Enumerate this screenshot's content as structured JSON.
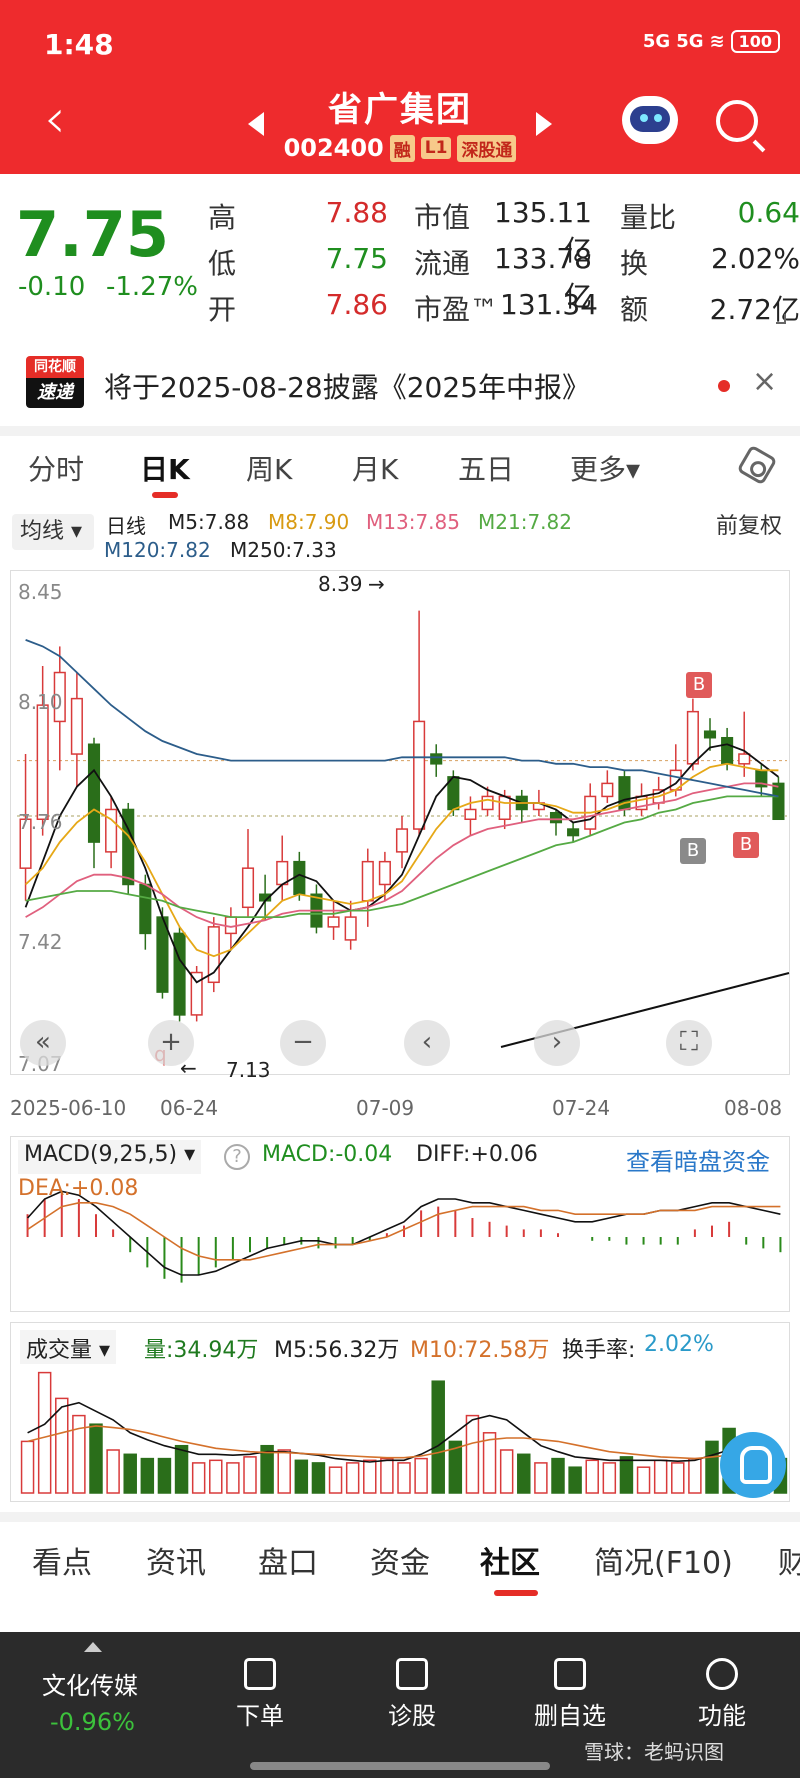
{
  "status": {
    "time": "1:48",
    "signal1": "5G",
    "signal2": "5G",
    "battery": "100"
  },
  "header": {
    "title": "省广集团",
    "code": "002400",
    "tags": [
      "融",
      "L1",
      "深股通"
    ]
  },
  "quote": {
    "price": "7.75",
    "change": "-0.10",
    "change_pct": "-1.27%",
    "high_label": "高",
    "high": "7.88",
    "low_label": "低",
    "low": "7.75",
    "open_label": "开",
    "open": "7.86",
    "mcap_label": "市值",
    "mcap": "135.11亿",
    "float_label": "流通",
    "float": "133.78亿",
    "pe_label": "市盈™",
    "pe": "131.34",
    "vr_label": "量比",
    "vr": "0.64",
    "turn_label": "换",
    "turn": "2.02%",
    "amt_label": "额",
    "amt": "2.72亿"
  },
  "notice": {
    "logo_top": "同花顺",
    "logo_bottom": "速递",
    "text": "将于2025-08-28披露《2025年中报》"
  },
  "ktabs": [
    "分时",
    "日K",
    "周K",
    "月K",
    "五日",
    "更多▾"
  ],
  "ma": {
    "select": "均线 ▾",
    "type": "日线",
    "m5": "M5:7.88",
    "m8": "M8:7.90",
    "m13": "M13:7.85",
    "m21": "M21:7.82",
    "m120": "M120:7.82",
    "m250": "M250:7.33",
    "adjust": "前复权"
  },
  "chart_axis": {
    "price_labels": [
      "8.45",
      "8.10",
      "7.76",
      "7.42",
      "7.07"
    ],
    "dates": [
      "2025-06-10",
      "06-24",
      "07-09",
      "07-24",
      "08-08"
    ],
    "high_mark": "8.39",
    "low_mark": "7.13"
  },
  "chart_data": {
    "type": "candlestick",
    "ylim": [
      7.07,
      8.45
    ],
    "high_annotation": 8.39,
    "low_annotation": 7.13,
    "x_ticks": [
      "2025-06-10",
      "06-24",
      "07-09",
      "07-24",
      "08-08"
    ],
    "candles": [
      {
        "o": 7.6,
        "c": 7.75,
        "h": 7.95,
        "l": 7.5,
        "up": true
      },
      {
        "o": 7.75,
        "c": 8.1,
        "h": 8.22,
        "l": 7.7,
        "up": true
      },
      {
        "o": 8.05,
        "c": 8.2,
        "h": 8.28,
        "l": 7.9,
        "up": true
      },
      {
        "o": 7.95,
        "c": 8.12,
        "h": 8.2,
        "l": 7.85,
        "up": true
      },
      {
        "o": 7.98,
        "c": 7.68,
        "h": 8.0,
        "l": 7.6,
        "up": false
      },
      {
        "o": 7.65,
        "c": 7.78,
        "h": 7.82,
        "l": 7.6,
        "up": true
      },
      {
        "o": 7.78,
        "c": 7.55,
        "h": 7.8,
        "l": 7.52,
        "up": false
      },
      {
        "o": 7.55,
        "c": 7.4,
        "h": 7.58,
        "l": 7.35,
        "up": false
      },
      {
        "o": 7.45,
        "c": 7.22,
        "h": 7.48,
        "l": 7.2,
        "up": false
      },
      {
        "o": 7.4,
        "c": 7.15,
        "h": 7.42,
        "l": 7.13,
        "up": false
      },
      {
        "o": 7.15,
        "c": 7.28,
        "h": 7.3,
        "l": 7.13,
        "up": true
      },
      {
        "o": 7.25,
        "c": 7.42,
        "h": 7.45,
        "l": 7.22,
        "up": true
      },
      {
        "o": 7.4,
        "c": 7.45,
        "h": 7.48,
        "l": 7.35,
        "up": true
      },
      {
        "o": 7.48,
        "c": 7.6,
        "h": 7.72,
        "l": 7.45,
        "up": true
      },
      {
        "o": 7.52,
        "c": 7.5,
        "h": 7.58,
        "l": 7.44,
        "up": false
      },
      {
        "o": 7.55,
        "c": 7.62,
        "h": 7.7,
        "l": 7.5,
        "up": true
      },
      {
        "o": 7.62,
        "c": 7.52,
        "h": 7.65,
        "l": 7.5,
        "up": false
      },
      {
        "o": 7.52,
        "c": 7.42,
        "h": 7.55,
        "l": 7.4,
        "up": false
      },
      {
        "o": 7.42,
        "c": 7.45,
        "h": 7.5,
        "l": 7.38,
        "up": true
      },
      {
        "o": 7.38,
        "c": 7.45,
        "h": 7.5,
        "l": 7.35,
        "up": true
      },
      {
        "o": 7.5,
        "c": 7.62,
        "h": 7.66,
        "l": 7.42,
        "up": true
      },
      {
        "o": 7.55,
        "c": 7.62,
        "h": 7.65,
        "l": 7.5,
        "up": true
      },
      {
        "o": 7.65,
        "c": 7.72,
        "h": 7.76,
        "l": 7.6,
        "up": true
      },
      {
        "o": 7.72,
        "c": 8.05,
        "h": 8.39,
        "l": 7.7,
        "up": true
      },
      {
        "o": 7.95,
        "c": 7.92,
        "h": 7.98,
        "l": 7.88,
        "up": false
      },
      {
        "o": 7.88,
        "c": 7.78,
        "h": 7.9,
        "l": 7.76,
        "up": false
      },
      {
        "o": 7.75,
        "c": 7.78,
        "h": 7.82,
        "l": 7.7,
        "up": true
      },
      {
        "o": 7.78,
        "c": 7.82,
        "h": 7.85,
        "l": 7.76,
        "up": true
      },
      {
        "o": 7.75,
        "c": 7.82,
        "h": 7.84,
        "l": 7.72,
        "up": true
      },
      {
        "o": 7.82,
        "c": 7.78,
        "h": 7.84,
        "l": 7.74,
        "up": false
      },
      {
        "o": 7.78,
        "c": 7.8,
        "h": 7.84,
        "l": 7.76,
        "up": true
      },
      {
        "o": 7.77,
        "c": 7.74,
        "h": 7.78,
        "l": 7.7,
        "up": false
      },
      {
        "o": 7.72,
        "c": 7.7,
        "h": 7.74,
        "l": 7.68,
        "up": false
      },
      {
        "o": 7.72,
        "c": 7.82,
        "h": 7.86,
        "l": 7.7,
        "up": true
      },
      {
        "o": 7.82,
        "c": 7.86,
        "h": 7.9,
        "l": 7.8,
        "up": true
      },
      {
        "o": 7.88,
        "c": 7.78,
        "h": 7.9,
        "l": 7.76,
        "up": false
      },
      {
        "o": 7.78,
        "c": 7.82,
        "h": 7.86,
        "l": 7.76,
        "up": true
      },
      {
        "o": 7.8,
        "c": 7.84,
        "h": 7.88,
        "l": 7.78,
        "up": true
      },
      {
        "o": 7.84,
        "c": 7.9,
        "h": 7.98,
        "l": 7.82,
        "up": true
      },
      {
        "o": 7.92,
        "c": 8.08,
        "h": 8.12,
        "l": 7.9,
        "up": true
      },
      {
        "o": 8.02,
        "c": 8.0,
        "h": 8.06,
        "l": 7.96,
        "up": false
      },
      {
        "o": 8.0,
        "c": 7.92,
        "h": 8.03,
        "l": 7.9,
        "up": false
      },
      {
        "o": 7.92,
        "c": 7.95,
        "h": 8.08,
        "l": 7.88,
        "up": true
      },
      {
        "o": 7.9,
        "c": 7.85,
        "h": 7.92,
        "l": 7.82,
        "up": false
      },
      {
        "o": 7.86,
        "c": 7.75,
        "h": 7.88,
        "l": 7.75,
        "up": false
      }
    ],
    "ma_lines": [
      {
        "name": "M5",
        "color": "#111111",
        "values": [
          7.48,
          7.62,
          7.76,
          7.85,
          7.9,
          7.82,
          7.72,
          7.6,
          7.45,
          7.32,
          7.25,
          7.28,
          7.35,
          7.42,
          7.5,
          7.55,
          7.58,
          7.56,
          7.5,
          7.47,
          7.48,
          7.52,
          7.58,
          7.7,
          7.82,
          7.88,
          7.87,
          7.84,
          7.82,
          7.8,
          7.8,
          7.78,
          7.74,
          7.75,
          7.79,
          7.81,
          7.82,
          7.83,
          7.86,
          7.92,
          7.97,
          7.98,
          7.96,
          7.92,
          7.88
        ]
      },
      {
        "name": "M8",
        "color": "#e6a817",
        "values": [
          7.55,
          7.6,
          7.68,
          7.74,
          7.78,
          7.75,
          7.7,
          7.62,
          7.52,
          7.42,
          7.35,
          7.33,
          7.35,
          7.4,
          7.45,
          7.5,
          7.52,
          7.51,
          7.5,
          7.49,
          7.5,
          7.52,
          7.56,
          7.64,
          7.72,
          7.78,
          7.8,
          7.81,
          7.8,
          7.8,
          7.8,
          7.79,
          7.77,
          7.77,
          7.78,
          7.8,
          7.81,
          7.82,
          7.84,
          7.88,
          7.91,
          7.92,
          7.91,
          7.9,
          7.9
        ]
      },
      {
        "name": "M13",
        "color": "#e0607e",
        "values": [
          7.45,
          7.48,
          7.52,
          7.56,
          7.58,
          7.58,
          7.57,
          7.55,
          7.52,
          7.48,
          7.45,
          7.43,
          7.42,
          7.43,
          7.44,
          7.46,
          7.47,
          7.47,
          7.47,
          7.47,
          7.48,
          7.5,
          7.53,
          7.58,
          7.63,
          7.67,
          7.7,
          7.72,
          7.73,
          7.74,
          7.75,
          7.75,
          7.75,
          7.76,
          7.77,
          7.78,
          7.79,
          7.8,
          7.81,
          7.83,
          7.84,
          7.85,
          7.86,
          7.86,
          7.85
        ]
      },
      {
        "name": "M21",
        "color": "#55aa44",
        "values": [
          7.5,
          7.51,
          7.52,
          7.53,
          7.53,
          7.53,
          7.52,
          7.51,
          7.5,
          7.48,
          7.47,
          7.46,
          7.45,
          7.45,
          7.45,
          7.45,
          7.46,
          7.46,
          7.46,
          7.47,
          7.47,
          7.48,
          7.49,
          7.51,
          7.53,
          7.55,
          7.57,
          7.59,
          7.61,
          7.63,
          7.65,
          7.67,
          7.68,
          7.7,
          7.72,
          7.74,
          7.75,
          7.77,
          7.78,
          7.8,
          7.81,
          7.82,
          7.82,
          7.82,
          7.82
        ]
      },
      {
        "name": "M120",
        "color": "#2c5d8a",
        "values": [
          8.3,
          8.28,
          8.25,
          8.2,
          8.15,
          8.1,
          8.06,
          8.02,
          7.99,
          7.97,
          7.95,
          7.94,
          7.93,
          7.93,
          7.93,
          7.93,
          7.93,
          7.93,
          7.93,
          7.93,
          7.93,
          7.93,
          7.94,
          7.94,
          7.94,
          7.94,
          7.94,
          7.94,
          7.94,
          7.93,
          7.93,
          7.92,
          7.92,
          7.91,
          7.91,
          7.9,
          7.9,
          7.89,
          7.88,
          7.87,
          7.86,
          7.85,
          7.84,
          7.83,
          7.82
        ]
      }
    ],
    "macd": {
      "macd": "-0.04",
      "diff": "+0.06",
      "dea": "+0.08"
    },
    "volume": {
      "vol": "34.94万",
      "m5": "56.32万",
      "m10": "72.58万",
      "turnover": "2.02%"
    }
  },
  "macd_panel": {
    "select": "MACD(9,25,5) ▾",
    "macd": "MACD:-0.04",
    "diff": "DIFF:+0.06",
    "dea": "DEA:+0.08",
    "link": "查看暗盘资金"
  },
  "vol_panel": {
    "select": "成交量 ▾",
    "vol": "量:34.94万",
    "m5": "M5:56.32万",
    "m10": "M10:72.58万",
    "turn_label": "换手率:",
    "turn": "2.02%"
  },
  "bottom_tabs": [
    "看点",
    "资讯",
    "盘口",
    "资金",
    "社区",
    "简况(F10)",
    "财"
  ],
  "footer": {
    "sector": "文化传媒",
    "sector_chg": "-0.96%",
    "order": "下单",
    "diagnose": "诊股",
    "remove": "删自选",
    "func": "功能",
    "watermark": "雪球：老蚂识图"
  },
  "controls": {
    "zoom_in": "+",
    "zoom_out": "−",
    "prev": "‹",
    "next": "›"
  },
  "signals": {
    "b1": "B",
    "b2": "B",
    "b3": "B",
    "q": "q"
  }
}
